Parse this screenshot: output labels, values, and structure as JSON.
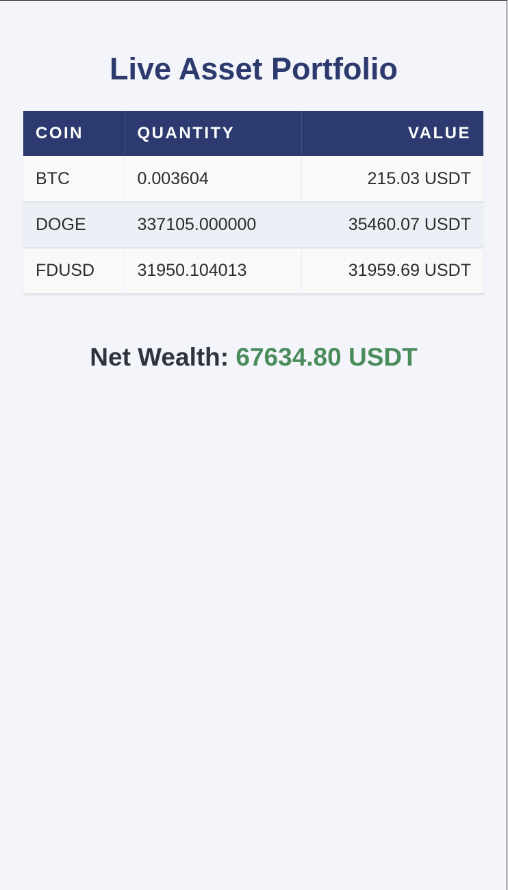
{
  "header": {
    "title": "Live Asset Portfolio"
  },
  "table": {
    "columns": [
      "COIN",
      "QUANTITY",
      "VALUE"
    ],
    "rows": [
      {
        "coin": "BTC",
        "quantity": "0.003604",
        "value": "215.03 USDT"
      },
      {
        "coin": "DOGE",
        "quantity": "337105.000000",
        "value": "35460.07 USDT"
      },
      {
        "coin": "FDUSD",
        "quantity": "31950.104013",
        "value": "31959.69 USDT"
      }
    ]
  },
  "summary": {
    "label": "Net Wealth:",
    "amount": "67634.80 USDT"
  },
  "colors": {
    "title": "#2d3a6e",
    "header_bg": "#2c3a70",
    "amount": "#4a8c5c",
    "background": "#f4f5fa"
  }
}
